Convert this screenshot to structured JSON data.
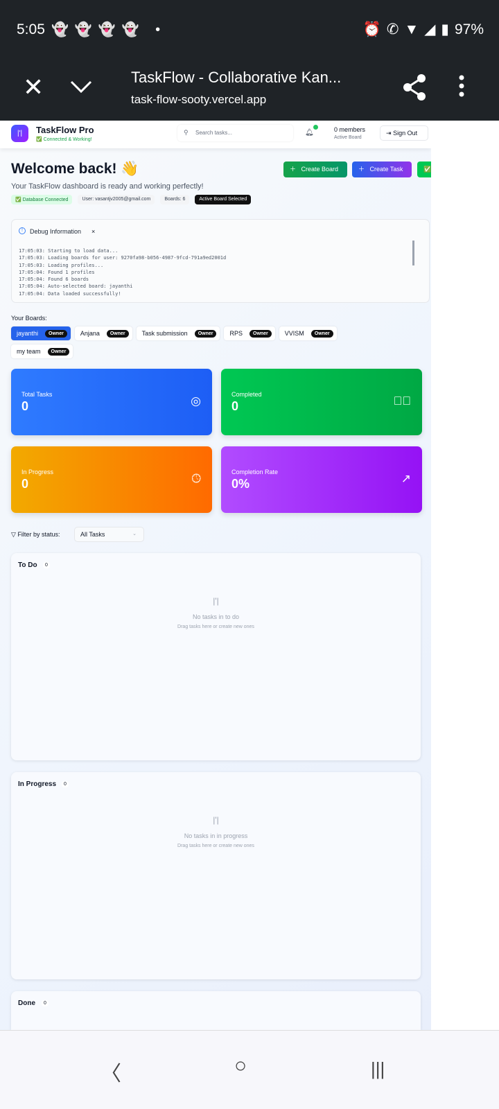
{
  "status_bar": {
    "time": "5:05",
    "notifications": "snapchat-icon x4",
    "battery": "97%"
  },
  "browser": {
    "title": "TaskFlow - Collaborative Kan...",
    "url": "task-flow-sooty.vercel.app"
  },
  "header": {
    "brand": "TaskFlow Pro",
    "status": "✅ Connected & Working!",
    "search_placeholder": "Search tasks...",
    "members": "0 members",
    "members_sub": "Active Board",
    "sign_out": "Sign Out"
  },
  "welcome": {
    "title": "Welcome back! 👋",
    "subtitle": "Your TaskFlow dashboard is ready and working perfectly!",
    "chips": [
      "✅ Database Connected",
      "User: vasantjv2005@gmail.com",
      "Boards: 6",
      "Active Board Selected"
    ]
  },
  "actions": {
    "create_board": "Create Board",
    "create_task": "Create Task",
    "test_connection": "✅ Test Connection"
  },
  "debug": {
    "title": "Debug Information",
    "close": "×",
    "log": [
      "17:05:03: Starting to load data...",
      "17:05:03: Loading boards for user: 9270fa98-b056-4987-9fcd-791a9ed2001d",
      "17:05:03: Loading profiles...",
      "17:05:04: Found 1 profiles",
      "17:05:04: Found 6 boards",
      "17:05:04: Auto-selected board: jayanthi",
      "17:05:04: Data loaded successfully!"
    ]
  },
  "boards": {
    "label": "Your Boards:",
    "items": [
      {
        "name": "jayanthi",
        "role": "Owner",
        "active": true
      },
      {
        "name": "Anjana",
        "role": "Owner"
      },
      {
        "name": "Task submission",
        "role": "Owner"
      },
      {
        "name": "RPS",
        "role": "Owner"
      },
      {
        "name": "VVISM",
        "role": "Owner"
      },
      {
        "name": "my team",
        "role": "Owner"
      }
    ]
  },
  "stats": [
    {
      "label": "Total Tasks",
      "value": "0",
      "icon": "target-icon"
    },
    {
      "label": "Completed",
      "value": "0",
      "icon": "check-circle-icon"
    },
    {
      "label": "In Progress",
      "value": "0",
      "icon": "clock-icon"
    },
    {
      "label": "Completion Rate",
      "value": "0%",
      "icon": "trending-up-icon"
    }
  ],
  "filter": {
    "label": "Filter by status:",
    "value": "All Tasks"
  },
  "columns": [
    {
      "title": "To Do",
      "count": "0",
      "empty": "No tasks in to do",
      "hint": "Drag tasks here or create new ones"
    },
    {
      "title": "In Progress",
      "count": "0",
      "empty": "No tasks in in progress",
      "hint": "Drag tasks here or create new ones"
    },
    {
      "title": "Done",
      "count": "0"
    }
  ],
  "colors": {
    "primary": "#2563eb",
    "success": "#00c853",
    "warning": "#f59e0b",
    "purple": "#a855f7"
  }
}
